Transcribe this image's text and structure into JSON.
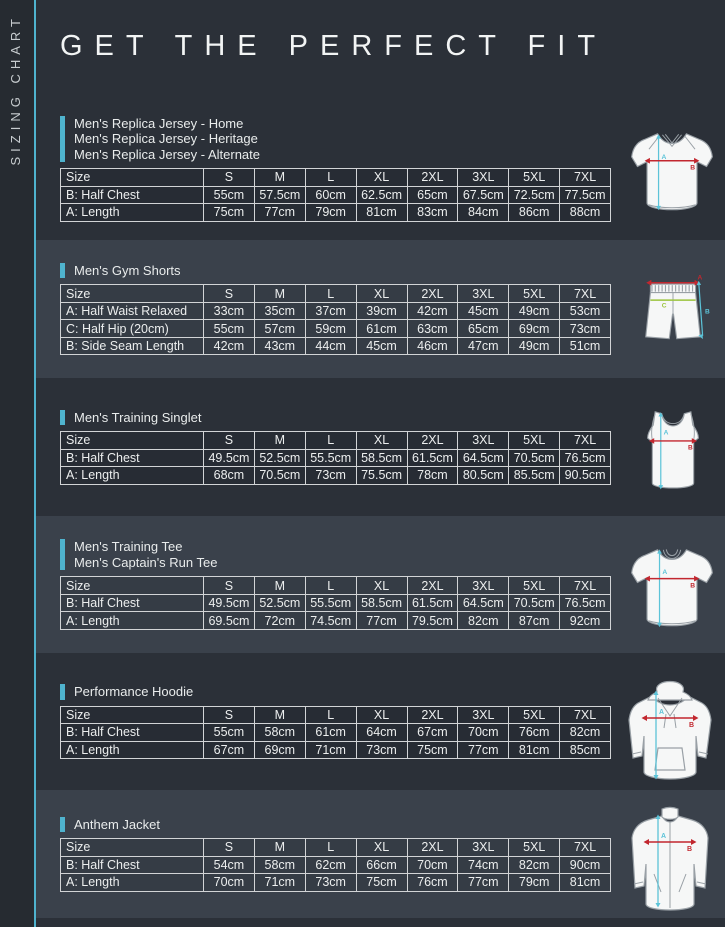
{
  "page": {
    "sidebar_label": "SIZING CHART",
    "title": "GET THE PERFECT FIT"
  },
  "colors": {
    "accent_teal": "#4FB3CE",
    "band_dark": "#2B3038",
    "band_light": "#3A414B",
    "measure_red": "#C2272F",
    "measure_cyan": "#5CC3D8",
    "measure_green": "#9BC43C",
    "table_border": "#D2D4D6"
  },
  "table_header": {
    "size_label": "Size",
    "sizes": [
      "S",
      "M",
      "L",
      "XL",
      "2XL",
      "3XL",
      "5XL",
      "7XL"
    ]
  },
  "sections": [
    {
      "garment": "jersey",
      "products": [
        "Men's Replica Jersey - Home",
        "Men's Replica Jersey - Heritage",
        "Men's Replica Jersey - Alternate"
      ],
      "rows": [
        {
          "label": "B: Half Chest",
          "values": [
            "55cm",
            "57.5cm",
            "60cm",
            "62.5cm",
            "65cm",
            "67.5cm",
            "72.5cm",
            "77.5cm"
          ]
        },
        {
          "label": "A: Length",
          "values": [
            "75cm",
            "77cm",
            "79cm",
            "81cm",
            "83cm",
            "84cm",
            "86cm",
            "88cm"
          ]
        }
      ]
    },
    {
      "garment": "shorts",
      "products": [
        "Men's Gym Shorts"
      ],
      "rows": [
        {
          "label": "A: Half Waist Relaxed",
          "values": [
            "33cm",
            "35cm",
            "37cm",
            "39cm",
            "42cm",
            "45cm",
            "49cm",
            "53cm"
          ]
        },
        {
          "label": "C: Half Hip (20cm)",
          "values": [
            "55cm",
            "57cm",
            "59cm",
            "61cm",
            "63cm",
            "65cm",
            "69cm",
            "73cm"
          ]
        },
        {
          "label": "B: Side Seam Length",
          "values": [
            "42cm",
            "43cm",
            "44cm",
            "45cm",
            "46cm",
            "47cm",
            "49cm",
            "51cm"
          ]
        }
      ]
    },
    {
      "garment": "singlet",
      "products": [
        "Men's Training Singlet"
      ],
      "rows": [
        {
          "label": "B: Half Chest",
          "values": [
            "49.5cm",
            "52.5cm",
            "55.5cm",
            "58.5cm",
            "61.5cm",
            "64.5cm",
            "70.5cm",
            "76.5cm"
          ]
        },
        {
          "label": "A: Length",
          "values": [
            "68cm",
            "70.5cm",
            "73cm",
            "75.5cm",
            "78cm",
            "80.5cm",
            "85.5cm",
            "90.5cm"
          ]
        }
      ]
    },
    {
      "garment": "tee",
      "products": [
        "Men's Training Tee",
        "Men's Captain's Run Tee"
      ],
      "rows": [
        {
          "label": "B: Half Chest",
          "values": [
            "49.5cm",
            "52.5cm",
            "55.5cm",
            "58.5cm",
            "61.5cm",
            "64.5cm",
            "70.5cm",
            "76.5cm"
          ]
        },
        {
          "label": "A: Length",
          "values": [
            "69.5cm",
            "72cm",
            "74.5cm",
            "77cm",
            "79.5cm",
            "82cm",
            "87cm",
            "92cm"
          ]
        }
      ]
    },
    {
      "garment": "hoodie",
      "products": [
        "Performance Hoodie"
      ],
      "rows": [
        {
          "label": "B: Half Chest",
          "values": [
            "55cm",
            "58cm",
            "61cm",
            "64cm",
            "67cm",
            "70cm",
            "76cm",
            "82cm"
          ]
        },
        {
          "label": "A: Length",
          "values": [
            "67cm",
            "69cm",
            "71cm",
            "73cm",
            "75cm",
            "77cm",
            "81cm",
            "85cm"
          ]
        }
      ]
    },
    {
      "garment": "jacket",
      "products": [
        "Anthem Jacket"
      ],
      "rows": [
        {
          "label": "B: Half Chest",
          "values": [
            "54cm",
            "58cm",
            "62cm",
            "66cm",
            "70cm",
            "74cm",
            "82cm",
            "90cm"
          ]
        },
        {
          "label": "A: Length",
          "values": [
            "70cm",
            "71cm",
            "73cm",
            "75cm",
            "76cm",
            "77cm",
            "79cm",
            "81cm"
          ]
        }
      ]
    }
  ]
}
